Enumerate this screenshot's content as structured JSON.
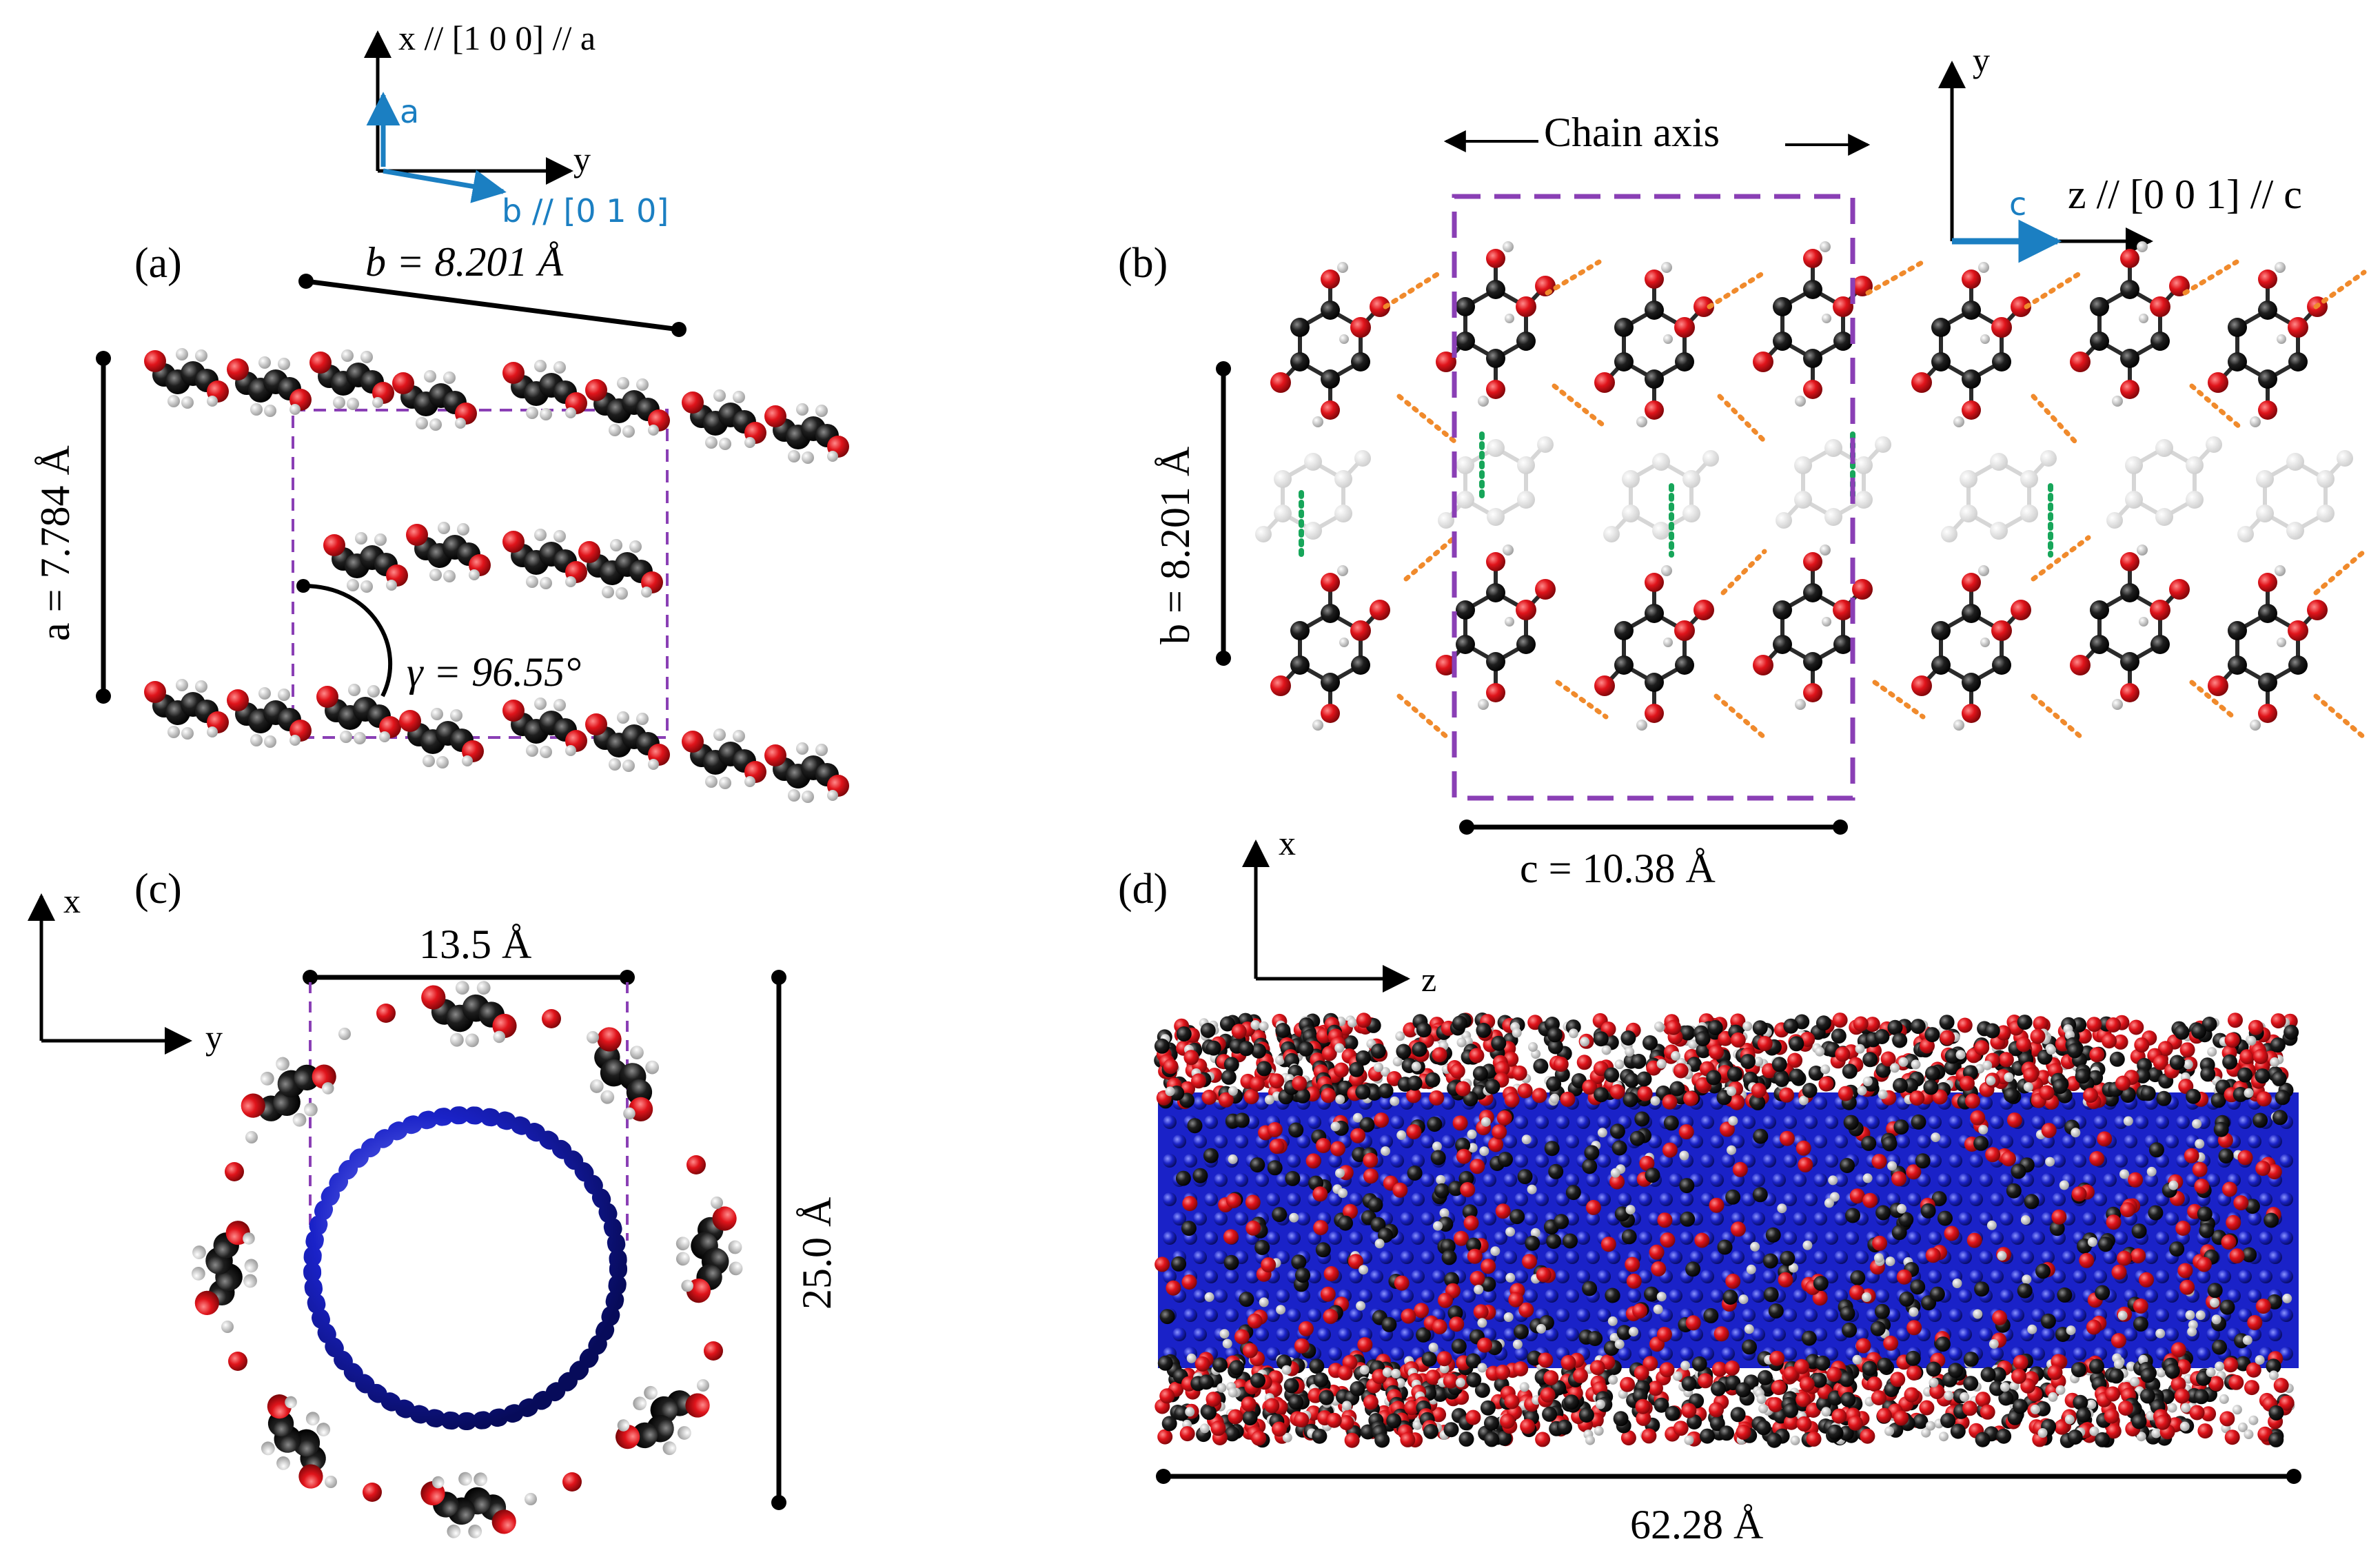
{
  "panels": {
    "a": {
      "label": "(a)",
      "axis_x": "x // [1 0 0] // a",
      "axis_y": "y",
      "axis_a": "a",
      "axis_b": "b // [0 1 0]",
      "dim_b": "b = 8.201 Å",
      "dim_a": "a = 7.784 Å",
      "angle": "γ = 96.55°"
    },
    "b": {
      "label": "(b)",
      "chain_axis": "Chain axis",
      "axis_y": "y",
      "axis_c": "c",
      "axis_z": "z // [0 0 1] // c",
      "dim_b": "b = 8.201 Å",
      "dim_c": "c = 10.38 Å"
    },
    "c": {
      "label": "(c)",
      "axis_x": "x",
      "axis_y": "y",
      "dim_width": "13.5 Å",
      "dim_height": "25.0 Å"
    },
    "d": {
      "label": "(d)",
      "axis_x": "x",
      "axis_z": "z",
      "dim_length": "62.28 Å"
    }
  },
  "colors": {
    "oxygen": "#e0141b",
    "carbon": "#141414",
    "hydrogen": "#d9d9d9",
    "nitrogen_boron": "#1a22c8",
    "cell_box": "#8a3fb5",
    "hbond_orange": "#f08a2c",
    "hbond_green": "#17a65a",
    "axis_blue": "#1b7fc2"
  }
}
